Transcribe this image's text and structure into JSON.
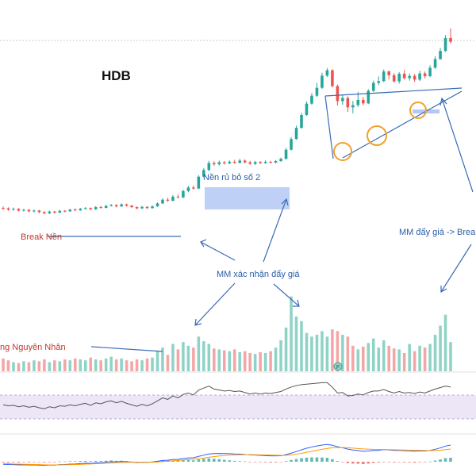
{
  "chart_data": {
    "type": "candlestick",
    "ticker": "HDB",
    "colors": {
      "up": "#26a69a",
      "down": "#ef5350",
      "vol_up": "#8fd3c7",
      "vol_down": "#f4a6a6",
      "annotation": "#2a5ea8",
      "annotation_red": "#c0392b",
      "rsi_line": "#555555",
      "rsi_band": "#ece6f7",
      "macd_line": "#2962ff",
      "signal_line": "#ff9800",
      "highlight_box": "#b3c8f5",
      "circle": "#f0a030"
    },
    "annotations": {
      "break_nen": "Break Nền",
      "nen_rut": "Nền rủ bỏ số 2",
      "mm_xac_nhan": "MM xác nhận đẩy giá",
      "mm_day_gia": "MM đẩy giá -> Brea",
      "nguyen_nhan": "ng Nguyên Nhân"
    },
    "flag_badge": "F",
    "price_range": [
      0,
      100
    ],
    "candles": [
      [
        25.0,
        24.8,
        25.6,
        24.2
      ],
      [
        24.8,
        24.3,
        25.2,
        23.8
      ],
      [
        24.3,
        24.6,
        25.1,
        23.9
      ],
      [
        24.6,
        23.9,
        24.9,
        23.5
      ],
      [
        23.9,
        24.2,
        24.6,
        23.5
      ],
      [
        24.2,
        23.6,
        24.5,
        23.2
      ],
      [
        23.6,
        23.9,
        24.3,
        23.1
      ],
      [
        23.9,
        23.3,
        24.2,
        22.8
      ],
      [
        23.3,
        22.8,
        23.6,
        22.4
      ],
      [
        22.8,
        23.5,
        23.9,
        22.5
      ],
      [
        23.5,
        23.1,
        23.8,
        22.7
      ],
      [
        23.1,
        23.8,
        24.2,
        22.9
      ],
      [
        23.8,
        23.6,
        24.1,
        23.2
      ],
      [
        23.6,
        24.3,
        24.6,
        23.4
      ],
      [
        24.3,
        24.0,
        24.8,
        23.7
      ],
      [
        24.0,
        24.6,
        25.0,
        23.8
      ],
      [
        24.6,
        24.9,
        25.3,
        24.3
      ],
      [
        24.9,
        24.4,
        25.2,
        24.1
      ],
      [
        24.4,
        25.3,
        25.7,
        24.2
      ],
      [
        25.3,
        25.0,
        25.8,
        24.7
      ],
      [
        25.0,
        25.8,
        26.2,
        24.8
      ],
      [
        25.8,
        26.1,
        26.6,
        25.5
      ],
      [
        26.1,
        25.6,
        26.4,
        25.2
      ],
      [
        25.6,
        26.4,
        26.8,
        25.4
      ],
      [
        26.4,
        25.9,
        26.7,
        25.5
      ],
      [
        25.9,
        25.3,
        26.2,
        24.9
      ],
      [
        25.3,
        24.8,
        25.6,
        24.4
      ],
      [
        24.8,
        25.4,
        25.8,
        24.5
      ],
      [
        25.4,
        24.9,
        25.7,
        24.6
      ],
      [
        24.9,
        25.6,
        26.0,
        24.7
      ],
      [
        25.6,
        26.8,
        27.2,
        25.4
      ],
      [
        26.8,
        28.3,
        28.8,
        26.5
      ],
      [
        28.3,
        27.9,
        29.0,
        27.4
      ],
      [
        27.9,
        29.5,
        30.2,
        27.6
      ],
      [
        29.5,
        29.2,
        30.4,
        28.9
      ],
      [
        29.2,
        31.8,
        32.3,
        28.9
      ],
      [
        31.8,
        33.2,
        33.9,
        31.3
      ],
      [
        33.2,
        32.8,
        34.0,
        32.4
      ],
      [
        32.8,
        37.6,
        38.2,
        32.6
      ],
      [
        37.6,
        40.3,
        41.0,
        37.2
      ],
      [
        40.3,
        43.1,
        44.0,
        39.8
      ],
      [
        43.1,
        42.6,
        43.8,
        42.0
      ],
      [
        42.6,
        43.4,
        44.1,
        42.1
      ],
      [
        43.4,
        43.0,
        43.9,
        42.5
      ],
      [
        43.0,
        43.6,
        44.2,
        42.6
      ],
      [
        43.6,
        43.2,
        44.4,
        42.8
      ],
      [
        43.2,
        44.1,
        44.8,
        42.9
      ],
      [
        44.1,
        43.4,
        44.6,
        42.9
      ],
      [
        43.4,
        42.8,
        44.0,
        42.4
      ],
      [
        42.8,
        43.5,
        44.0,
        42.3
      ],
      [
        43.5,
        43.1,
        43.9,
        42.7
      ],
      [
        43.1,
        43.6,
        44.2,
        42.8
      ],
      [
        43.6,
        43.3,
        44.0,
        42.9
      ],
      [
        43.3,
        43.9,
        44.3,
        43.0
      ],
      [
        43.9,
        44.8,
        45.3,
        43.6
      ],
      [
        44.8,
        48.5,
        49.2,
        44.5
      ],
      [
        48.5,
        52.8,
        53.6,
        48.2
      ],
      [
        52.8,
        57.3,
        58.2,
        52.5
      ],
      [
        57.3,
        62.5,
        63.4,
        57.0
      ],
      [
        62.5,
        67.1,
        68.0,
        62.2
      ],
      [
        67.1,
        70.3,
        71.4,
        66.6
      ],
      [
        70.3,
        73.5,
        75.5,
        69.8
      ],
      [
        73.5,
        78.4,
        79.6,
        73.1
      ],
      [
        78.4,
        80.6,
        81.5,
        77.9
      ],
      [
        80.6,
        74.2,
        81.0,
        73.6
      ],
      [
        74.2,
        68.1,
        74.8,
        66.3
      ],
      [
        68.1,
        69.4,
        70.6,
        66.7
      ],
      [
        69.4,
        65.6,
        70.1,
        63.8
      ],
      [
        65.6,
        66.5,
        68.2,
        63.2
      ],
      [
        66.5,
        68.6,
        71.9,
        65.8
      ],
      [
        68.6,
        67.2,
        69.8,
        66.4
      ],
      [
        67.2,
        72.3,
        72.9,
        66.9
      ],
      [
        72.3,
        75.5,
        76.4,
        71.8
      ],
      [
        75.5,
        76.2,
        78.1,
        74.6
      ],
      [
        76.2,
        80.1,
        80.9,
        75.8
      ],
      [
        80.1,
        78.6,
        80.6,
        76.9
      ],
      [
        78.6,
        76.1,
        79.4,
        75.6
      ],
      [
        76.1,
        79.2,
        79.8,
        75.2
      ],
      [
        79.2,
        77.4,
        80.6,
        76.8
      ],
      [
        77.4,
        78.3,
        79.3,
        76.4
      ],
      [
        78.3,
        76.8,
        79.1,
        75.9
      ],
      [
        76.8,
        79.3,
        80.4,
        76.2
      ],
      [
        79.3,
        78.2,
        80.1,
        77.3
      ],
      [
        78.2,
        81.6,
        82.6,
        77.8
      ],
      [
        81.6,
        85.1,
        86.2,
        81.2
      ],
      [
        85.1,
        88.4,
        89.6,
        84.8
      ],
      [
        88.4,
        93.6,
        94.8,
        88.0
      ],
      [
        93.6,
        92.1,
        97.5,
        91.4
      ]
    ],
    "volumes": [
      [
        14,
        0
      ],
      [
        12,
        0
      ],
      [
        10,
        1
      ],
      [
        9,
        0
      ],
      [
        11,
        1
      ],
      [
        10,
        0
      ],
      [
        12,
        1
      ],
      [
        11,
        0
      ],
      [
        13,
        0
      ],
      [
        10,
        1
      ],
      [
        12,
        0
      ],
      [
        11,
        1
      ],
      [
        13,
        0
      ],
      [
        12,
        1
      ],
      [
        14,
        0
      ],
      [
        13,
        1
      ],
      [
        12,
        1
      ],
      [
        15,
        0
      ],
      [
        13,
        1
      ],
      [
        12,
        0
      ],
      [
        14,
        1
      ],
      [
        16,
        1
      ],
      [
        13,
        0
      ],
      [
        14,
        1
      ],
      [
        12,
        0
      ],
      [
        11,
        0
      ],
      [
        13,
        0
      ],
      [
        12,
        1
      ],
      [
        14,
        0
      ],
      [
        15,
        1
      ],
      [
        22,
        1
      ],
      [
        26,
        1
      ],
      [
        18,
        0
      ],
      [
        30,
        1
      ],
      [
        24,
        0
      ],
      [
        32,
        1
      ],
      [
        28,
        1
      ],
      [
        26,
        0
      ],
      [
        38,
        1
      ],
      [
        33,
        1
      ],
      [
        30,
        1
      ],
      [
        25,
        0
      ],
      [
        24,
        1
      ],
      [
        23,
        0
      ],
      [
        22,
        1
      ],
      [
        24,
        0
      ],
      [
        21,
        1
      ],
      [
        22,
        0
      ],
      [
        20,
        0
      ],
      [
        19,
        1
      ],
      [
        21,
        0
      ],
      [
        20,
        1
      ],
      [
        22,
        0
      ],
      [
        26,
        1
      ],
      [
        34,
        1
      ],
      [
        48,
        1
      ],
      [
        82,
        1
      ],
      [
        60,
        1
      ],
      [
        55,
        1
      ],
      [
        42,
        1
      ],
      [
        38,
        1
      ],
      [
        40,
        1
      ],
      [
        44,
        1
      ],
      [
        38,
        1
      ],
      [
        46,
        0
      ],
      [
        44,
        0
      ],
      [
        40,
        1
      ],
      [
        38,
        0
      ],
      [
        28,
        0
      ],
      [
        24,
        1
      ],
      [
        27,
        0
      ],
      [
        31,
        1
      ],
      [
        36,
        1
      ],
      [
        26,
        1
      ],
      [
        34,
        1
      ],
      [
        28,
        0
      ],
      [
        25,
        0
      ],
      [
        24,
        1
      ],
      [
        20,
        0
      ],
      [
        30,
        1
      ],
      [
        22,
        0
      ],
      [
        28,
        1
      ],
      [
        26,
        0
      ],
      [
        30,
        1
      ],
      [
        40,
        1
      ],
      [
        50,
        1
      ],
      [
        62,
        1
      ],
      [
        32,
        1
      ]
    ],
    "rsi": [
      48,
      46,
      47,
      44,
      46,
      43,
      45,
      42,
      40,
      44,
      42,
      46,
      45,
      48,
      46,
      49,
      51,
      47,
      52,
      50,
      54,
      56,
      52,
      55,
      51,
      48,
      45,
      49,
      46,
      50,
      56,
      62,
      59,
      66,
      62,
      69,
      72,
      68,
      78,
      82,
      86,
      80,
      78,
      76,
      77,
      75,
      76,
      73,
      70,
      72,
      70,
      72,
      71,
      73,
      75,
      80,
      84,
      87,
      89,
      90,
      91,
      92,
      93,
      93,
      84,
      72,
      73,
      66,
      67,
      70,
      68,
      73,
      76,
      76,
      79,
      75,
      72,
      75,
      72,
      73,
      71,
      74,
      72,
      76,
      80,
      83,
      86,
      84
    ],
    "macd": [
      -2,
      -2.2,
      -2.3,
      -2.5,
      -2.4,
      -2.6,
      -2.5,
      -2.7,
      -2.9,
      -2.6,
      -2.7,
      -2.3,
      -2.2,
      -1.9,
      -1.8,
      -1.5,
      -1.2,
      -1.3,
      -0.9,
      -0.8,
      -0.4,
      0,
      -0.1,
      0.2,
      0,
      -0.3,
      -0.6,
      -0.4,
      -0.5,
      -0.2,
      0.4,
      1,
      1.2,
      1.7,
      1.9,
      2.5,
      3,
      3.1,
      4.2,
      5.2,
      6.1,
      6.4,
      6.5,
      6.4,
      6.3,
      6.1,
      6,
      5.8,
      5.4,
      5.2,
      5,
      4.8,
      4.6,
      4.6,
      4.7,
      5.6,
      6.7,
      8,
      9.4,
      10.6,
      11.6,
      12.4,
      13.1,
      13.6,
      13,
      11.8,
      11,
      9.9,
      9.2,
      8.8,
      8.2,
      8.4,
      8.8,
      9,
      9.5,
      9.3,
      8.9,
      9,
      8.7,
      8.6,
      8.3,
      8.5,
      8.4,
      8.9,
      9.8,
      10.9,
      12.3,
      13.1
    ],
    "signal": [
      -1.5,
      -1.6,
      -1.8,
      -1.9,
      -2,
      -2.1,
      -2.2,
      -2.3,
      -2.4,
      -2.5,
      -2.5,
      -2.5,
      -2.4,
      -2.3,
      -2.2,
      -2.1,
      -1.9,
      -1.8,
      -1.6,
      -1.4,
      -1.2,
      -1,
      -0.8,
      -0.6,
      -0.5,
      -0.4,
      -0.4,
      -0.4,
      -0.4,
      -0.4,
      -0.2,
      0.1,
      0.4,
      0.7,
      1,
      1.3,
      1.7,
      2,
      2.4,
      2.9,
      3.5,
      4,
      4.5,
      4.9,
      5.2,
      5.4,
      5.5,
      5.6,
      5.6,
      5.5,
      5.4,
      5.3,
      5.2,
      5.1,
      5,
      5.1,
      5.4,
      5.9,
      6.6,
      7.4,
      8.2,
      9,
      9.8,
      10.5,
      11,
      11.2,
      11.2,
      11,
      10.7,
      10.4,
      10.1,
      9.9,
      9.7,
      9.6,
      9.6,
      9.5,
      9.4,
      9.3,
      9.2,
      9.1,
      9,
      8.9,
      8.8,
      8.8,
      8.9,
      9.1,
      9.5,
      10
    ]
  }
}
